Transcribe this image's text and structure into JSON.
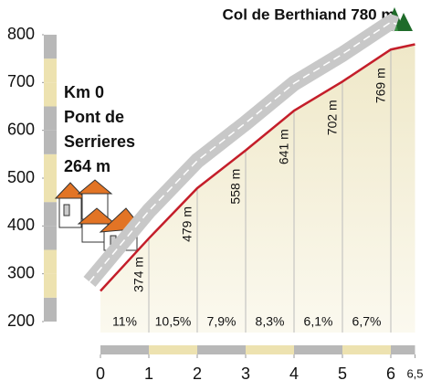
{
  "chart_data": {
    "type": "line",
    "title": "Col de Berthiand 780 m",
    "start_label": [
      "Km 0",
      "Pont de",
      "Serrieres",
      "264 m"
    ],
    "x": [
      0,
      1,
      2,
      3,
      4,
      5,
      6,
      6.5
    ],
    "values": [
      264,
      374,
      479,
      558,
      641,
      702,
      769,
      780
    ],
    "value_labels": [
      null,
      "374 m",
      "479 m",
      "558 m",
      "641 m",
      "702 m",
      "769 m",
      null
    ],
    "gradients": [
      11,
      10.5,
      7.9,
      8.3,
      6.1,
      6.7
    ],
    "gradient_labels": [
      "11%",
      "10,5%",
      "7,9%",
      "8,3%",
      "6,1%",
      "6,7%"
    ],
    "color": "#c41e2a",
    "xlim": [
      0,
      6.5
    ],
    "xticks": [
      0,
      1,
      2,
      3,
      4,
      5,
      6,
      {
        "value": 6.5,
        "label": "6,5"
      }
    ],
    "ylim": [
      200,
      800
    ],
    "yticks": [
      200,
      300,
      400,
      500,
      600,
      700,
      800
    ]
  }
}
